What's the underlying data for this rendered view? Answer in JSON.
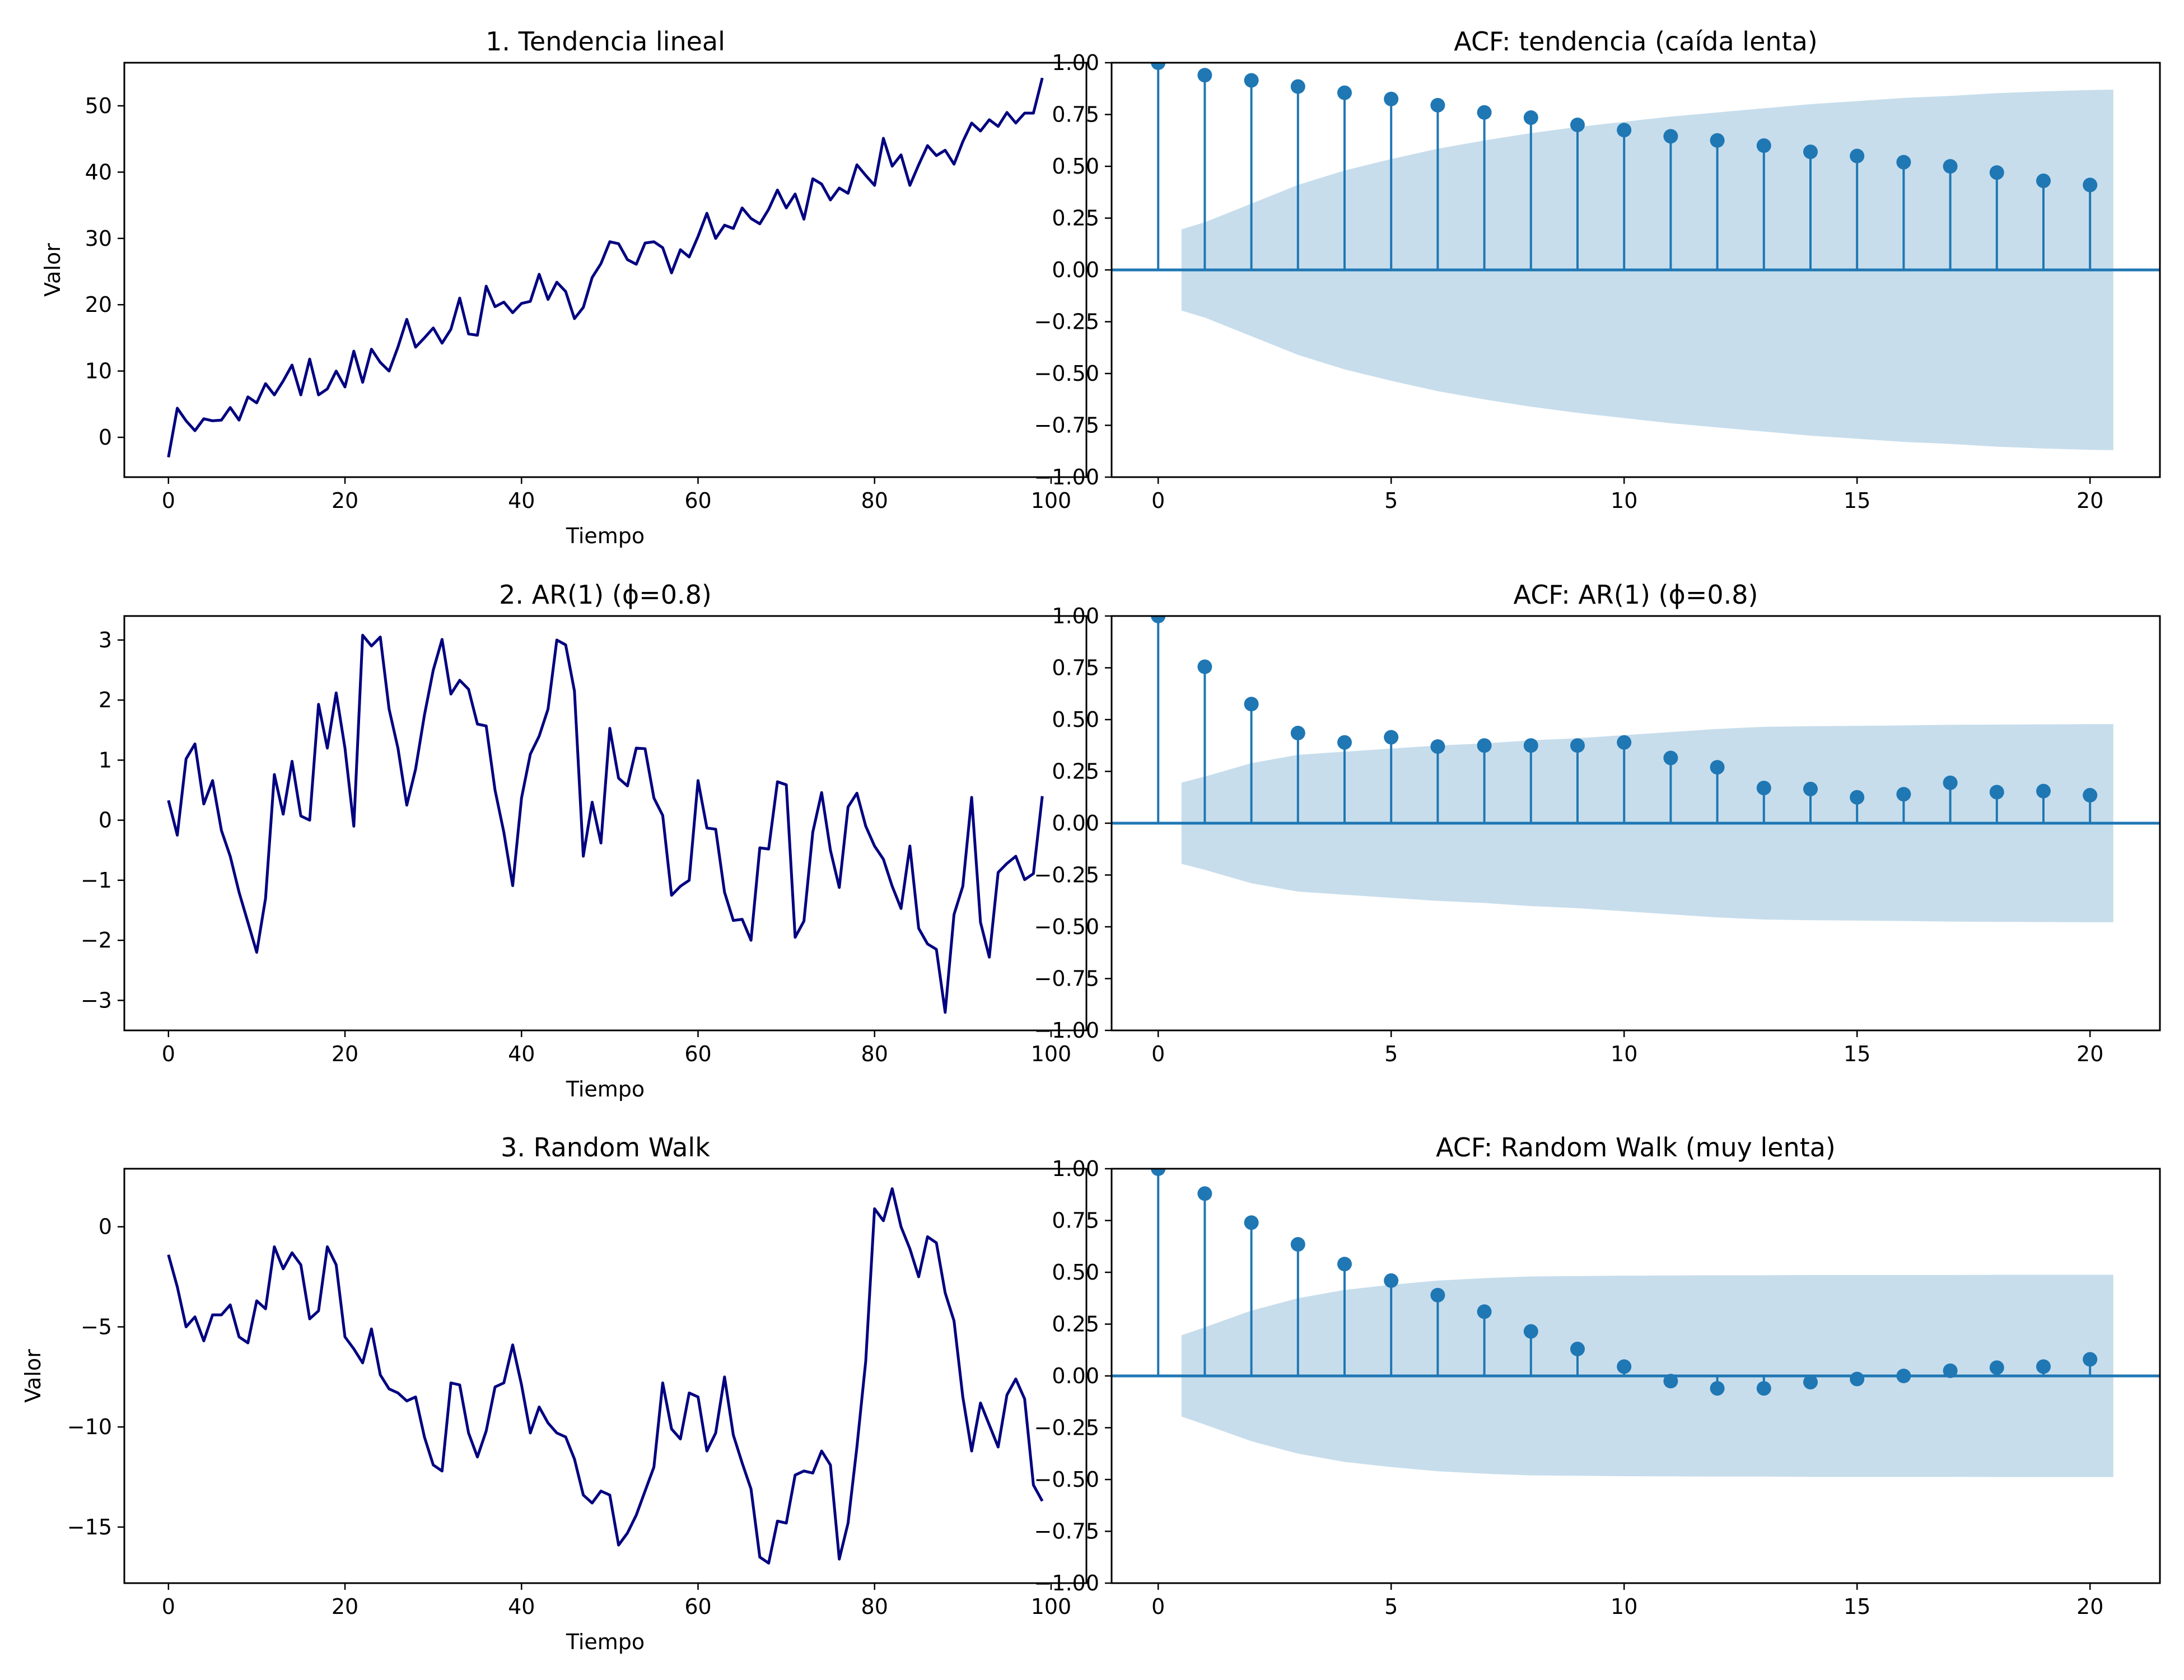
{
  "figure": {
    "line_color": "#000080",
    "stem_color": "#1f77b4",
    "band_color": "#1f77b4",
    "band_opacity": 0.25
  },
  "chart_data": [
    {
      "id": "trend",
      "type": "line",
      "title": "1. Tendencia lineal",
      "xlabel": "Tiempo",
      "ylabel": "Valor",
      "xlim": [
        -5,
        104
      ],
      "ylim": [
        -6,
        56.5
      ],
      "xticks": [
        0,
        20,
        40,
        60,
        80,
        100
      ],
      "yticks": [
        0,
        10,
        20,
        30,
        40,
        50
      ],
      "ytick_labels": [
        "0",
        "10",
        "20",
        "30",
        "40",
        "50"
      ],
      "x": "0..99",
      "values": [
        -3.0,
        4.4,
        2.5,
        1.0,
        2.8,
        2.5,
        2.6,
        4.5,
        2.6,
        6.1,
        5.2,
        8.1,
        6.4,
        8.5,
        10.9,
        6.4,
        11.8,
        6.4,
        7.3,
        10.0,
        7.6,
        13.0,
        8.3,
        13.3,
        11.3,
        10.0,
        13.6,
        17.8,
        13.6,
        15.0,
        16.5,
        14.2,
        16.3,
        21.0,
        15.6,
        15.4,
        22.8,
        19.7,
        20.4,
        18.8,
        20.2,
        20.5,
        24.6,
        20.8,
        23.4,
        22.0,
        17.9,
        19.6,
        24.1,
        26.2,
        29.5,
        29.2,
        26.8,
        26.1,
        29.3,
        29.5,
        28.6,
        24.8,
        28.3,
        27.2,
        30.3,
        33.8,
        30.0,
        32.0,
        31.5,
        34.6,
        33.0,
        32.2,
        34.4,
        37.3,
        34.6,
        36.7,
        32.9,
        39.0,
        38.2,
        35.8,
        37.6,
        36.8,
        41.1,
        39.5,
        38.0,
        45.1,
        40.9,
        42.6,
        38.0,
        41.1,
        44.0,
        42.5,
        43.3,
        41.2,
        44.6,
        47.4,
        46.2,
        47.9,
        46.9,
        49.0,
        47.4,
        48.9,
        48.9,
        54.2
      ]
    },
    {
      "id": "acf-trend",
      "type": "stem",
      "title": "ACF: tendencia (caída lenta)",
      "xlabel": "",
      "ylabel": "",
      "xlim": [
        -1,
        21.5
      ],
      "ylim": [
        -1.0,
        1.0
      ],
      "xticks": [
        0,
        5,
        10,
        15,
        20
      ],
      "yticks": [
        -1.0,
        -0.75,
        -0.5,
        -0.25,
        0.0,
        0.25,
        0.5,
        0.75,
        1.0
      ],
      "ytick_labels": [
        "−1.00",
        "−0.75",
        "−0.50",
        "−0.25",
        "0.00",
        "0.25",
        "0.50",
        "0.75",
        "1.00"
      ],
      "lags": [
        0,
        1,
        2,
        3,
        4,
        5,
        6,
        7,
        8,
        9,
        10,
        11,
        12,
        13,
        14,
        15,
        16,
        17,
        18,
        19,
        20
      ],
      "values": [
        1.0,
        0.94,
        0.915,
        0.885,
        0.855,
        0.825,
        0.795,
        0.76,
        0.735,
        0.7,
        0.675,
        0.645,
        0.625,
        0.6,
        0.57,
        0.55,
        0.52,
        0.5,
        0.47,
        0.43,
        0.41
      ],
      "confint_lags": [
        0.5,
        1,
        2,
        3,
        4,
        5,
        6,
        7,
        8,
        9,
        10,
        11,
        12,
        13,
        14,
        15,
        16,
        17,
        18,
        19,
        20,
        20.5
      ],
      "confint": [
        0.196,
        0.23,
        0.32,
        0.41,
        0.48,
        0.535,
        0.585,
        0.625,
        0.66,
        0.69,
        0.715,
        0.74,
        0.76,
        0.78,
        0.8,
        0.815,
        0.83,
        0.84,
        0.853,
        0.862,
        0.868,
        0.87
      ]
    },
    {
      "id": "ar1",
      "type": "line",
      "title": "2. AR(1) (ϕ=0.8)",
      "xlabel": "Tiempo",
      "ylabel": "",
      "xlim": [
        -5,
        104
      ],
      "ylim": [
        -3.5,
        3.4
      ],
      "xticks": [
        0,
        20,
        40,
        60,
        80,
        100
      ],
      "yticks": [
        -3,
        -2,
        -1,
        0,
        1,
        2,
        3
      ],
      "ytick_labels": [
        "−3",
        "−2",
        "−1",
        "0",
        "1",
        "2",
        "3"
      ],
      "x": "0..99",
      "values": [
        0.33,
        -0.25,
        1.02,
        1.27,
        0.27,
        0.66,
        -0.17,
        -0.6,
        -1.2,
        -1.7,
        -2.2,
        -1.3,
        0.76,
        0.1,
        0.98,
        0.07,
        0.0,
        1.93,
        1.2,
        2.12,
        1.2,
        -0.1,
        3.08,
        2.9,
        3.05,
        1.85,
        1.2,
        0.25,
        0.85,
        1.75,
        2.5,
        3.01,
        2.1,
        2.33,
        2.18,
        1.6,
        1.57,
        0.5,
        -0.2,
        -1.09,
        0.37,
        1.1,
        1.4,
        1.85,
        3.0,
        2.92,
        2.15,
        -0.6,
        0.3,
        -0.38,
        1.53,
        0.7,
        0.57,
        1.2,
        1.19,
        0.37,
        0.08,
        -1.25,
        -1.1,
        -1.0,
        0.66,
        -0.13,
        -0.15,
        -1.2,
        -1.67,
        -1.65,
        -2.0,
        -0.46,
        -0.48,
        0.64,
        0.59,
        -1.95,
        -1.68,
        -0.2,
        0.46,
        -0.5,
        -1.12,
        0.22,
        0.45,
        -0.1,
        -0.43,
        -0.65,
        -1.1,
        -1.47,
        -0.43,
        -1.8,
        -2.06,
        -2.15,
        -3.2,
        -1.57,
        -1.1,
        0.38,
        -1.7,
        -2.28,
        -0.87,
        -0.72,
        -0.6,
        -0.99,
        -0.89,
        0.4
      ]
    },
    {
      "id": "acf-ar1",
      "type": "stem",
      "title": "ACF: AR(1) (ϕ=0.8)",
      "xlabel": "",
      "ylabel": "",
      "xlim": [
        -1,
        21.5
      ],
      "ylim": [
        -1.0,
        1.0
      ],
      "xticks": [
        0,
        5,
        10,
        15,
        20
      ],
      "yticks": [
        -1.0,
        -0.75,
        -0.5,
        -0.25,
        0.0,
        0.25,
        0.5,
        0.75,
        1.0
      ],
      "ytick_labels": [
        "−1.00",
        "−0.75",
        "−0.50",
        "−0.25",
        "0.00",
        "0.25",
        "0.50",
        "0.75",
        "1.00"
      ],
      "lags": [
        0,
        1,
        2,
        3,
        4,
        5,
        6,
        7,
        8,
        9,
        10,
        11,
        12,
        13,
        14,
        15,
        16,
        17,
        18,
        19,
        20
      ],
      "values": [
        1.0,
        0.755,
        0.575,
        0.435,
        0.39,
        0.415,
        0.37,
        0.375,
        0.375,
        0.375,
        0.39,
        0.315,
        0.27,
        0.17,
        0.165,
        0.125,
        0.14,
        0.195,
        0.15,
        0.155,
        0.135
      ],
      "confint_lags": [
        0.5,
        1,
        2,
        3,
        4,
        5,
        6,
        7,
        8,
        9,
        10,
        11,
        12,
        13,
        14,
        15,
        16,
        17,
        18,
        19,
        20,
        20.5
      ],
      "confint": [
        0.196,
        0.225,
        0.29,
        0.33,
        0.345,
        0.36,
        0.375,
        0.385,
        0.4,
        0.41,
        0.425,
        0.44,
        0.455,
        0.465,
        0.468,
        0.47,
        0.472,
        0.475,
        0.476,
        0.477,
        0.478,
        0.478
      ]
    },
    {
      "id": "random-walk",
      "type": "line",
      "title": "3. Random Walk",
      "xlabel": "Tiempo",
      "ylabel": "Valor",
      "xlim": [
        -5,
        104
      ],
      "ylim": [
        -17.8,
        2.9
      ],
      "xticks": [
        0,
        20,
        40,
        60,
        80,
        100
      ],
      "yticks": [
        -15,
        -10,
        -5,
        0
      ],
      "ytick_labels": [
        "−15",
        "−10",
        "−5",
        "0"
      ],
      "x": "0..99",
      "values": [
        -1.4,
        -3.0,
        -5.0,
        -4.5,
        -5.7,
        -4.4,
        -4.4,
        -3.9,
        -5.5,
        -5.8,
        -3.7,
        -4.1,
        -1.0,
        -2.1,
        -1.3,
        -1.9,
        -4.6,
        -4.2,
        -1.0,
        -1.9,
        -5.5,
        -6.1,
        -6.8,
        -5.1,
        -7.4,
        -8.1,
        -8.3,
        -8.7,
        -8.5,
        -10.5,
        -11.9,
        -12.2,
        -7.8,
        -7.9,
        -10.3,
        -11.5,
        -10.2,
        -8.0,
        -7.8,
        -5.9,
        -7.9,
        -10.3,
        -9.0,
        -9.8,
        -10.3,
        -10.5,
        -11.6,
        -13.4,
        -13.8,
        -13.2,
        -13.4,
        -15.9,
        -15.3,
        -14.4,
        -13.2,
        -12.0,
        -7.8,
        -10.1,
        -10.6,
        -8.3,
        -8.5,
        -11.2,
        -10.3,
        -7.5,
        -10.4,
        -11.8,
        -13.1,
        -16.5,
        -16.8,
        -14.7,
        -14.8,
        -12.4,
        -12.2,
        -12.3,
        -11.2,
        -11.9,
        -16.6,
        -14.8,
        -11.0,
        -6.7,
        0.9,
        0.3,
        1.9,
        0.0,
        -1.1,
        -2.5,
        -0.5,
        -0.8,
        -3.3,
        -4.7,
        -8.5,
        -11.2,
        -8.8,
        -9.9,
        -11.0,
        -8.4,
        -7.6,
        -8.6,
        -12.9,
        -13.7
      ]
    },
    {
      "id": "acf-random-walk",
      "type": "stem",
      "title": "ACF: Random Walk (muy lenta)",
      "xlabel": "",
      "ylabel": "",
      "xlim": [
        -1,
        21.5
      ],
      "ylim": [
        -1.0,
        1.0
      ],
      "xticks": [
        0,
        5,
        10,
        15,
        20
      ],
      "yticks": [
        -1.0,
        -0.75,
        -0.5,
        -0.25,
        0.0,
        0.25,
        0.5,
        0.75,
        1.0
      ],
      "ytick_labels": [
        "−1.00",
        "−0.75",
        "−0.50",
        "−0.25",
        "0.00",
        "0.25",
        "0.50",
        "0.75",
        "1.00"
      ],
      "lags": [
        0,
        1,
        2,
        3,
        4,
        5,
        6,
        7,
        8,
        9,
        10,
        11,
        12,
        13,
        14,
        15,
        16,
        17,
        18,
        19,
        20
      ],
      "values": [
        1.0,
        0.88,
        0.74,
        0.635,
        0.54,
        0.46,
        0.39,
        0.31,
        0.215,
        0.13,
        0.045,
        -0.025,
        -0.06,
        -0.06,
        -0.03,
        -0.015,
        0.0,
        0.025,
        0.04,
        0.045,
        0.08
      ],
      "confint_lags": [
        0.5,
        1,
        2,
        3,
        4,
        5,
        6,
        7,
        8,
        9,
        10,
        11,
        12,
        13,
        14,
        15,
        16,
        17,
        18,
        19,
        20,
        20.5
      ],
      "confint": [
        0.196,
        0.235,
        0.315,
        0.375,
        0.415,
        0.44,
        0.46,
        0.472,
        0.48,
        0.482,
        0.484,
        0.485,
        0.486,
        0.486,
        0.487,
        0.487,
        0.487,
        0.487,
        0.488,
        0.488,
        0.488,
        0.488
      ]
    }
  ]
}
